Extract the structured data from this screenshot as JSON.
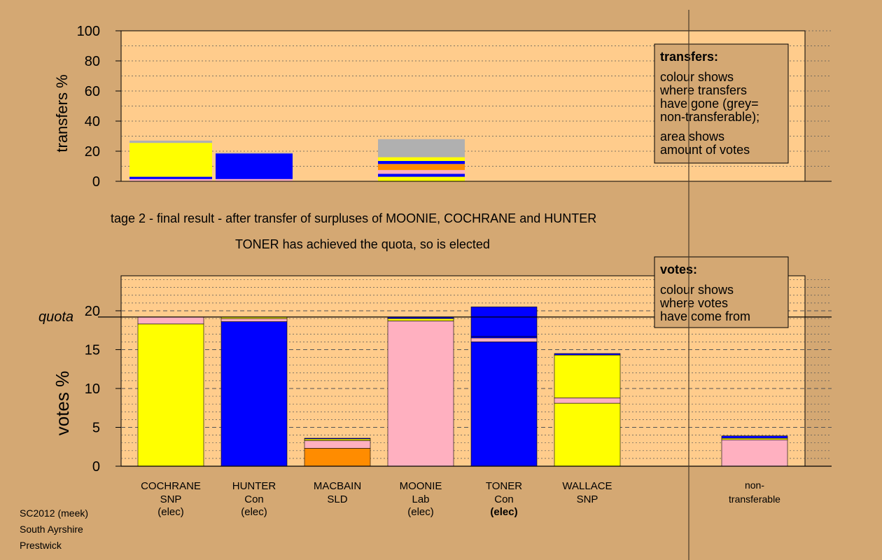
{
  "colors": {
    "background": "#d4a873",
    "plot_area": "#ffcc8c",
    "SNP": "#ffff00",
    "Con": "#0000ff",
    "SLD": "#ff8c00",
    "Lab": "#ffb0c0",
    "nontransferable": "#b0b0b0"
  },
  "header": {
    "stage_text": "tage 2 - final result - after transfer of surpluses of MOONIE, COCHRANE and HUNTER",
    "status_text": "TONER has achieved the quota, so is elected"
  },
  "footer": {
    "line1": "SC2012 (meek)",
    "line2": "South Ayrshire",
    "line3": "Prestwick"
  },
  "chart_data": [
    {
      "type": "bar",
      "stacked": true,
      "ylabel": "transfers %",
      "ylim": [
        0,
        100
      ],
      "yticks": [
        "0",
        "20",
        "40",
        "60",
        "80",
        "100"
      ],
      "legend": {
        "title": "transfers:",
        "lines": [
          "colour shows",
          "where transfers",
          "have gone (grey=",
          "non-transferable);",
          "area shows",
          "amount of votes"
        ],
        "placement": "top-right"
      },
      "bars": [
        {
          "from": "COCHRANE",
          "segments": [
            {
              "to": "Lab",
              "value": 1.5
            },
            {
              "to": "Con",
              "value": 1.5
            },
            {
              "to": "SNP",
              "value": 22.5
            },
            {
              "to": "non-transferable",
              "value": 1.5
            }
          ]
        },
        {
          "from": "HUNTER",
          "segments": [
            {
              "to": "Lab",
              "value": 1.5
            },
            {
              "to": "Con",
              "value": 17
            },
            {
              "to": "non-transferable",
              "value": 0.5
            }
          ]
        },
        {
          "from": "MACBAIN",
          "segments": []
        },
        {
          "from": "MOONIE",
          "segments": [
            {
              "to": "SNP",
              "value": 3
            },
            {
              "to": "Con",
              "value": 2
            },
            {
              "to": "Lab",
              "value": 2.5
            },
            {
              "to": "SLD",
              "value": 4
            },
            {
              "to": "Con",
              "value": 2
            },
            {
              "to": "SNP",
              "value": 2.5
            },
            {
              "to": "non-transferable",
              "value": 12
            }
          ]
        },
        {
          "from": "TONER",
          "segments": []
        },
        {
          "from": "WALLACE",
          "segments": []
        }
      ]
    },
    {
      "type": "bar",
      "stacked": true,
      "ylabel": "votes %",
      "ylim": [
        0,
        24.5
      ],
      "yticks": [
        "0",
        "5",
        "10",
        "15",
        "20"
      ],
      "quota": 19.2,
      "quota_label": "quota",
      "legend": {
        "title": "votes:",
        "lines": [
          "colour shows",
          "where votes",
          "have come from"
        ],
        "placement": "top-right"
      },
      "candidates": [
        {
          "name": "COCHRANE",
          "party": "SNP",
          "status": "(elec)",
          "bold_status": false,
          "segments": [
            {
              "from": "SNP",
              "value": 18.3
            },
            {
              "from": "Lab",
              "value": 0.9
            }
          ]
        },
        {
          "name": "HUNTER",
          "party": "Con",
          "status": "(elec)",
          "bold_status": false,
          "segments": [
            {
              "from": "Con",
              "value": 18.6
            },
            {
              "from": "Lab",
              "value": 0.4
            },
            {
              "from": "SNP",
              "value": 0.2
            }
          ]
        },
        {
          "name": "MACBAIN",
          "party": "SLD",
          "status": "",
          "bold_status": false,
          "segments": [
            {
              "from": "SLD",
              "value": 2.3
            },
            {
              "from": "Lab",
              "value": 1.0
            },
            {
              "from": "SNP",
              "value": 0.2
            },
            {
              "from": "Con",
              "value": 0.1
            }
          ]
        },
        {
          "name": "MOONIE",
          "party": "Lab",
          "status": "(elec)",
          "bold_status": false,
          "segments": [
            {
              "from": "Lab",
              "value": 18.7
            },
            {
              "from": "SNP",
              "value": 0.3
            },
            {
              "from": "Con",
              "value": 0.2
            }
          ]
        },
        {
          "name": "TONER",
          "party": "Con",
          "status": "(elec)",
          "bold_status": true,
          "segments": [
            {
              "from": "Con",
              "value": 16.0
            },
            {
              "from": "Lab",
              "value": 0.5
            },
            {
              "from": "Con",
              "value": 0.2
            },
            {
              "from": "Con",
              "value": 3.8
            }
          ]
        },
        {
          "name": "WALLACE",
          "party": "SNP",
          "status": "",
          "bold_status": false,
          "segments": [
            {
              "from": "SNP",
              "value": 8.1
            },
            {
              "from": "Lab",
              "value": 0.7
            },
            {
              "from": "SNP",
              "value": 5.5
            },
            {
              "from": "Con",
              "value": 0.2
            }
          ]
        }
      ],
      "nontransferable": {
        "label_line1": "non-",
        "label_line2": "transferable",
        "segments": [
          {
            "from": "Lab",
            "value": 3.4
          },
          {
            "from": "SNP",
            "value": 0.2
          },
          {
            "from": "Con",
            "value": 0.3
          }
        ]
      }
    }
  ]
}
